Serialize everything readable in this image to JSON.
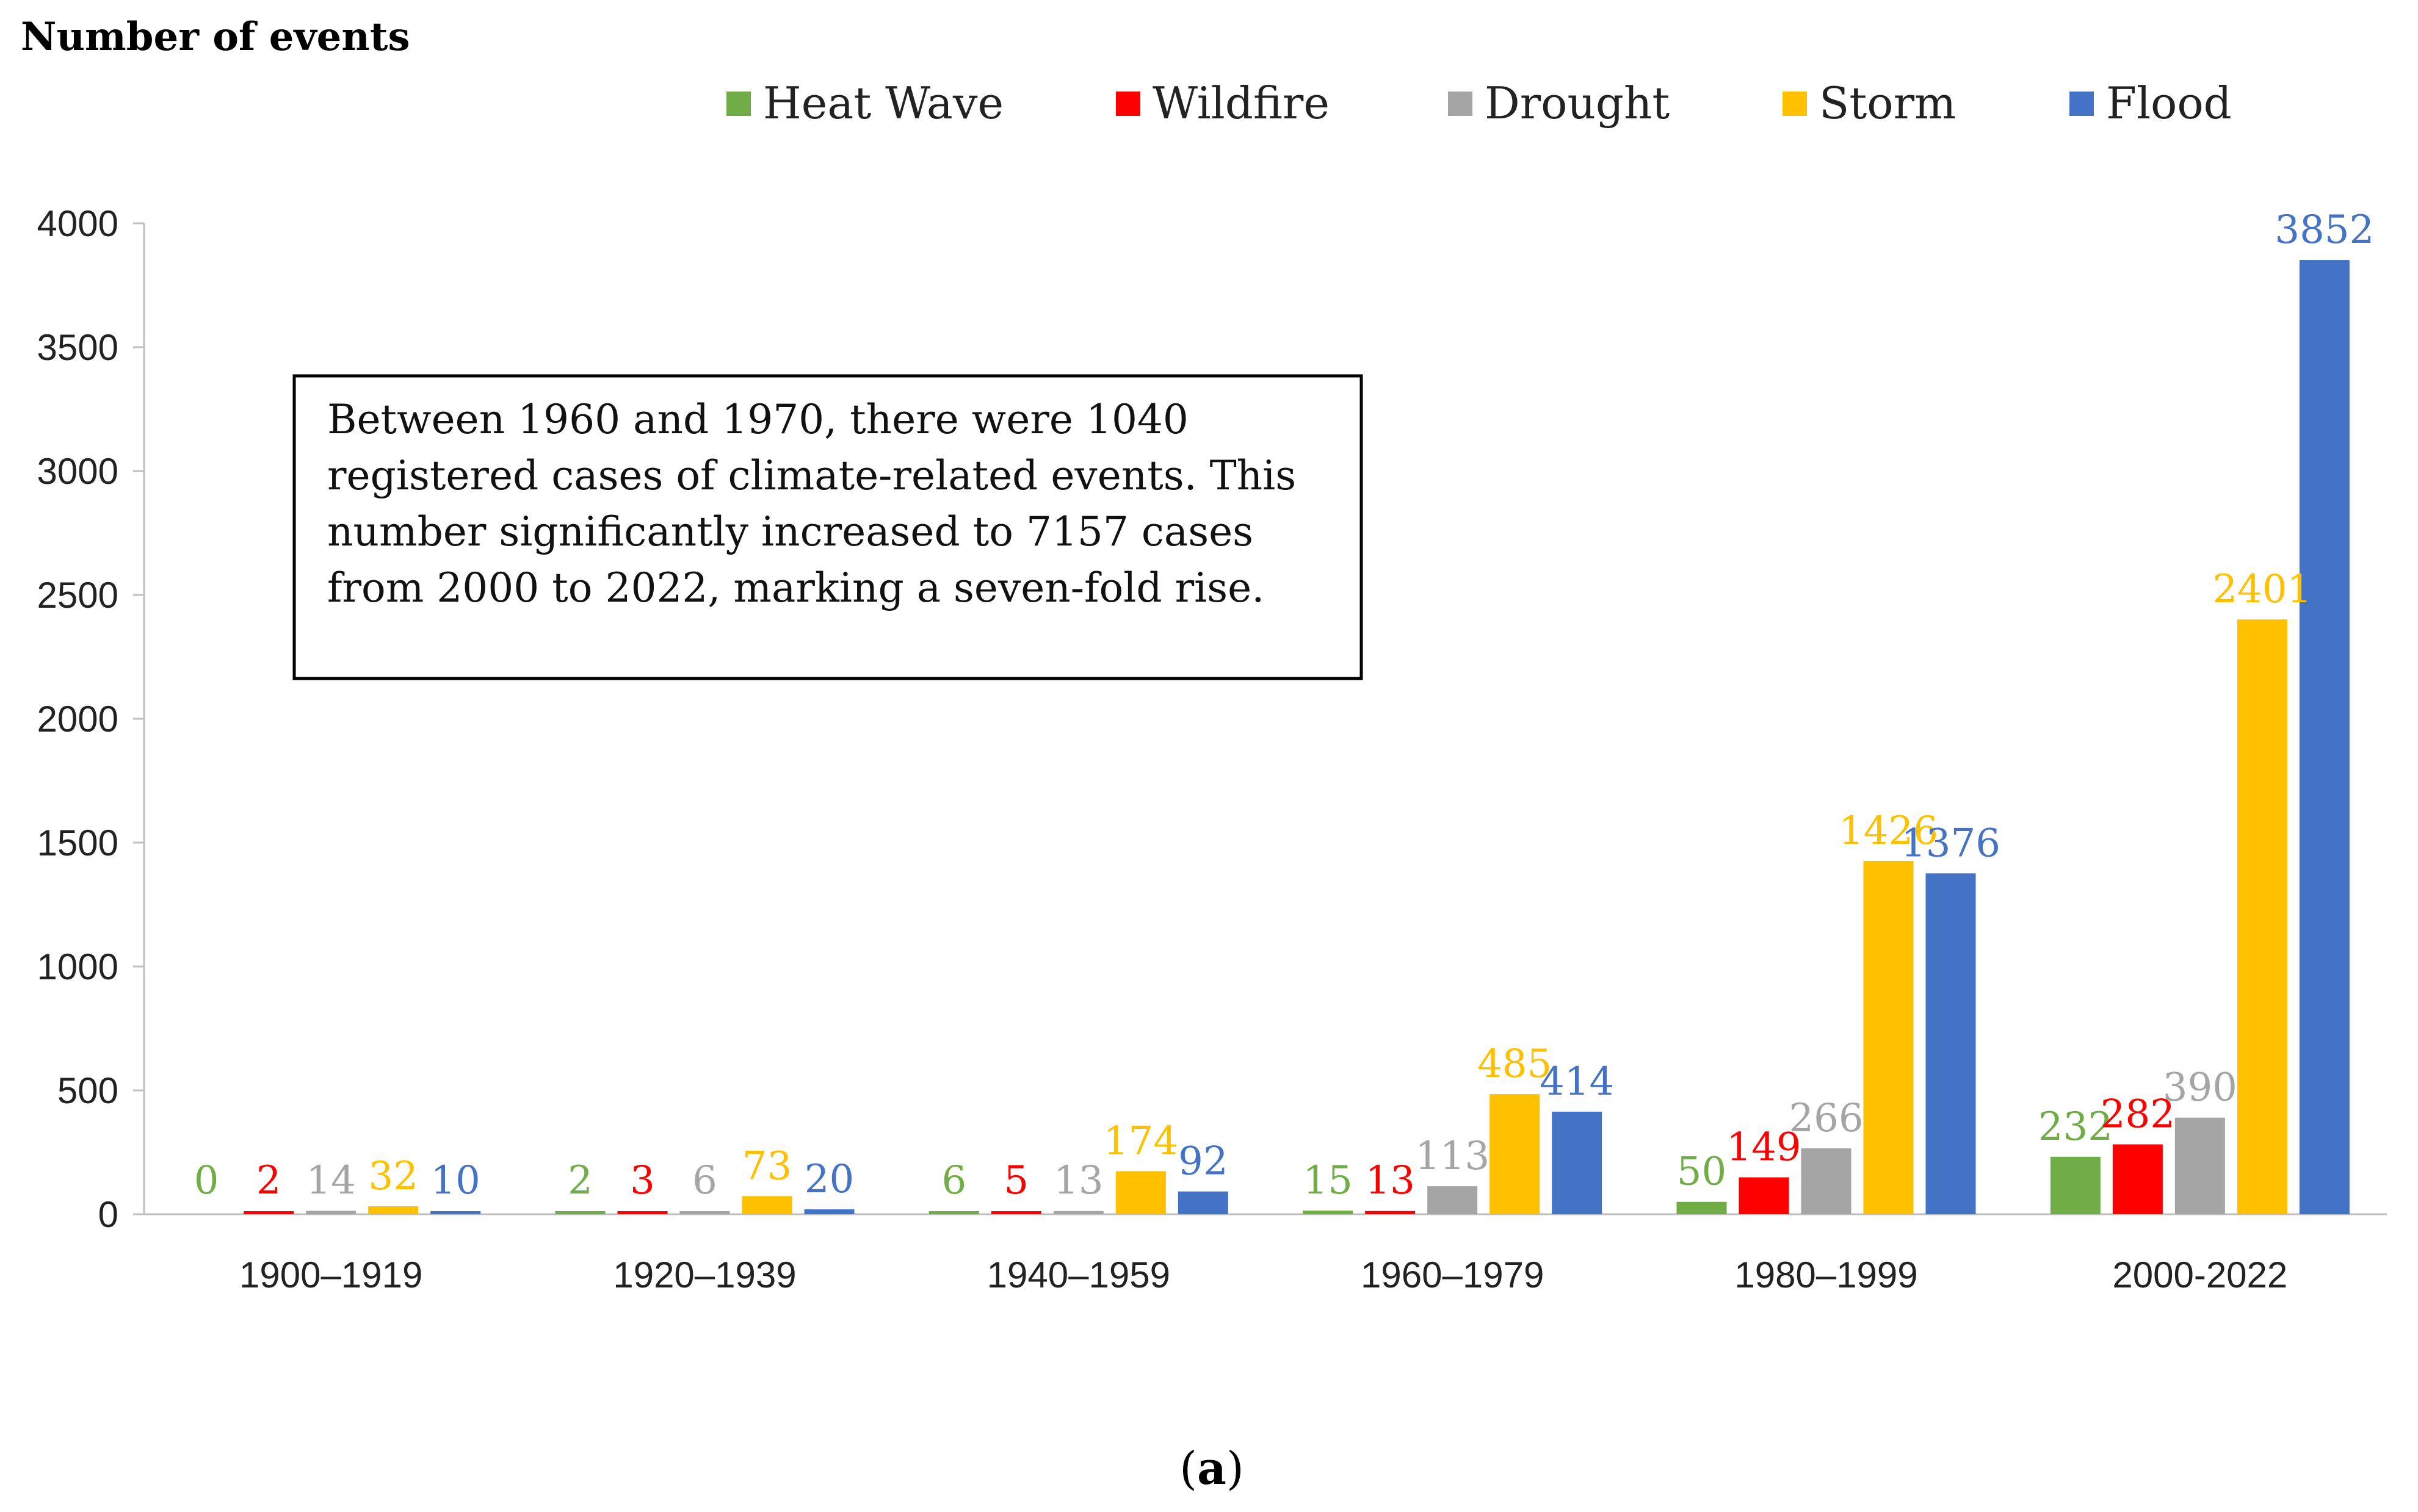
{
  "chart_data": {
    "type": "bar",
    "ylabel": "Number of events",
    "ylim": [
      0,
      4000
    ],
    "yticks": [
      0,
      500,
      1000,
      1500,
      2000,
      2500,
      3000,
      3500,
      4000
    ],
    "categories": [
      "1900–1919",
      "1920–1939",
      "1940–1959",
      "1960–1979",
      "1980–1999",
      "2000-2022"
    ],
    "series": [
      {
        "name": "Heat Wave",
        "color": "#70ad47",
        "values": [
          0,
          2,
          6,
          15,
          50,
          232
        ]
      },
      {
        "name": "Wildfire",
        "color": "#ff0000",
        "values": [
          2,
          3,
          5,
          13,
          149,
          282
        ]
      },
      {
        "name": "Drought",
        "color": "#a5a5a5",
        "values": [
          14,
          6,
          13,
          113,
          266,
          390
        ]
      },
      {
        "name": "Storm",
        "color": "#ffc000",
        "values": [
          32,
          73,
          174,
          485,
          1426,
          2401
        ]
      },
      {
        "name": "Flood",
        "color": "#4472c4",
        "values": [
          10,
          20,
          92,
          414,
          1376,
          3852
        ]
      }
    ],
    "legend": "top",
    "annotation": "Between 1960 and 1970, there were 1040 registered cases of climate-related events. This number significantly increased to 7157 cases from 2000 to 2022, marking a seven-fold rise.",
    "annotation_lines": [
      "Between 1960 and 1970, there were 1040",
      "registered cases of climate-related events. This",
      "number significantly increased to 7157 cases",
      "from 2000 to 2022, marking a seven-fold rise."
    ],
    "caption_letter": "a",
    "caption": "(a)"
  }
}
